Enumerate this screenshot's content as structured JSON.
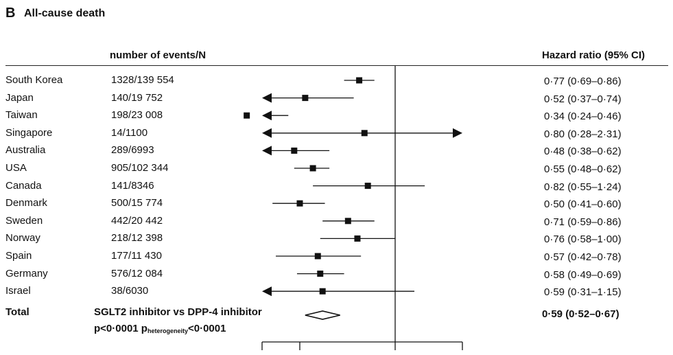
{
  "panel": {
    "letter": "B",
    "title": "All-cause death"
  },
  "headers": {
    "events": "number of events/N",
    "hr": "Hazard ratio (95% CI)"
  },
  "total": {
    "label": "Total",
    "comparison": "SGLT2 inhibitor vs DPP-4 inhibitor",
    "hr_text": "0·59 (0·52–0·67)",
    "p_prefix": "p<0·0001 p",
    "p_sub": "heterogeneity",
    "p_suffix": "<0·0001"
  },
  "chart_data": {
    "type": "forest",
    "title": "All-cause death",
    "xlim": [
      0.25,
      2.0
    ],
    "reference_line": 1.0,
    "log_scale": true,
    "rows": [
      {
        "country": "South Korea",
        "events": "1328/139 554",
        "hr": 0.77,
        "lo": 0.69,
        "hi": 0.86,
        "hr_text": "0·77 (0·69–0·86)"
      },
      {
        "country": "Japan",
        "events": "140/19 752",
        "hr": 0.52,
        "lo": 0.37,
        "hi": 0.74,
        "hr_text": "0·52 (0·37–0·74)"
      },
      {
        "country": "Taiwan",
        "events": "198/23 008",
        "hr": 0.34,
        "lo": 0.24,
        "hi": 0.46,
        "hr_text": "0·34 (0·24–0·46)"
      },
      {
        "country": "Singapore",
        "events": "14/1100",
        "hr": 0.8,
        "lo": 0.28,
        "hi": 2.31,
        "hr_text": "0·80 (0·28–2·31)"
      },
      {
        "country": "Australia",
        "events": "289/6993",
        "hr": 0.48,
        "lo": 0.38,
        "hi": 0.62,
        "hr_text": "0·48 (0·38–0·62)"
      },
      {
        "country": "USA",
        "events": "905/102 344",
        "hr": 0.55,
        "lo": 0.48,
        "hi": 0.62,
        "hr_text": "0·55 (0·48–0·62)"
      },
      {
        "country": "Canada",
        "events": "141/8346",
        "hr": 0.82,
        "lo": 0.55,
        "hi": 1.24,
        "hr_text": "0·82 (0·55–1·24)"
      },
      {
        "country": "Denmark",
        "events": "500/15 774",
        "hr": 0.5,
        "lo": 0.41,
        "hi": 0.6,
        "hr_text": "0·50 (0·41–0·60)"
      },
      {
        "country": "Sweden",
        "events": "442/20 442",
        "hr": 0.71,
        "lo": 0.59,
        "hi": 0.86,
        "hr_text": "0·71 (0·59–0·86)"
      },
      {
        "country": "Norway",
        "events": "218/12 398",
        "hr": 0.76,
        "lo": 0.58,
        "hi": 1.0,
        "hr_text": "0·76 (0·58–1·00)"
      },
      {
        "country": "Spain",
        "events": "177/11 430",
        "hr": 0.57,
        "lo": 0.42,
        "hi": 0.78,
        "hr_text": "0·57 (0·42–0·78)"
      },
      {
        "country": "Germany",
        "events": "576/12 084",
        "hr": 0.58,
        "lo": 0.49,
        "hi": 0.69,
        "hr_text": "0·58 (0·49–0·69)"
      },
      {
        "country": "Israel",
        "events": "38/6030",
        "hr": 0.59,
        "lo": 0.31,
        "hi": 1.15,
        "hr_text": "0·59 (0·31–1·15)"
      }
    ],
    "pooled": {
      "hr": 0.59,
      "lo": 0.52,
      "hi": 0.67
    },
    "x_ticks": [
      0.5,
      1.0,
      2.0
    ]
  }
}
